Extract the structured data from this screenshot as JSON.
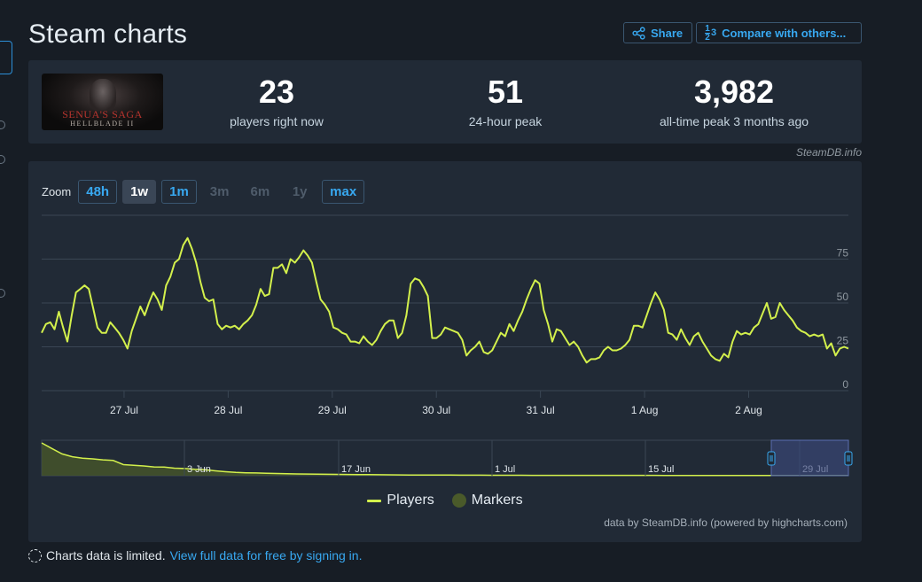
{
  "page": {
    "title": "Steam charts"
  },
  "header": {
    "share_label": "Share",
    "compare_label": "Compare with others...",
    "compare_icon_top": "1",
    "compare_icon_bottom": "2",
    "compare_icon_right": "3"
  },
  "game": {
    "thumb_title": "SENUA'S SAGA",
    "thumb_subtitle": "HELLBLADE II"
  },
  "stats": [
    {
      "value": "23",
      "label": "players right now"
    },
    {
      "value": "51",
      "label": "24-hour peak"
    },
    {
      "value": "3,982",
      "label": "all-time peak 3 months ago"
    }
  ],
  "credit_top": "SteamDB.info",
  "zoom": {
    "label": "Zoom",
    "options": [
      {
        "label": "48h",
        "state": "link"
      },
      {
        "label": "1w",
        "state": "active"
      },
      {
        "label": "1m",
        "state": "link"
      },
      {
        "label": "3m",
        "state": "disabled"
      },
      {
        "label": "6m",
        "state": "disabled"
      },
      {
        "label": "1y",
        "state": "disabled"
      },
      {
        "label": "max",
        "state": "link"
      }
    ]
  },
  "colors": {
    "series": "#d3f04c",
    "accent": "#38a8f0",
    "marker": "#4a5a2a",
    "navigator_window": "#3c4a7d"
  },
  "chart_data": {
    "type": "line",
    "title": "",
    "xlabel": "",
    "ylabel": "",
    "ylim": [
      0,
      100
    ],
    "yticks": [
      0,
      25,
      50,
      75
    ],
    "grid": true,
    "x_ticks": [
      "27 Jul",
      "28 Jul",
      "29 Jul",
      "30 Jul",
      "31 Jul",
      "1 Aug",
      "2 Aug"
    ],
    "x_start": "2024-07-26 05:00",
    "x_end": "2024-08-02 23:00",
    "sample_hours": 1,
    "series": [
      {
        "name": "Players",
        "values": [
          33,
          38,
          39,
          35,
          45,
          36,
          28,
          43,
          56,
          58,
          60,
          58,
          47,
          36,
          33,
          33,
          39,
          36,
          33,
          29,
          24,
          34,
          41,
          48,
          43,
          50,
          56,
          52,
          46,
          60,
          65,
          73,
          75,
          83,
          87,
          81,
          73,
          62,
          53,
          51,
          52,
          38,
          35,
          37,
          36,
          37,
          35,
          38,
          40,
          43,
          49,
          58,
          54,
          55,
          70,
          70,
          72,
          67,
          75,
          73,
          76,
          80,
          77,
          73,
          62,
          52,
          49,
          45,
          36,
          35,
          33,
          32,
          28,
          28,
          27,
          31,
          28,
          26,
          29,
          34,
          38,
          40,
          40,
          30,
          33,
          43,
          61,
          64,
          63,
          59,
          54,
          30,
          30,
          32,
          36,
          35,
          34,
          33,
          29,
          20,
          23,
          25,
          28,
          22,
          21,
          23,
          28,
          33,
          31,
          38,
          34,
          40,
          45,
          52,
          58,
          63,
          61,
          46,
          38,
          28,
          35,
          34,
          30,
          26,
          28,
          25,
          20,
          16,
          18,
          18,
          19,
          23,
          25,
          23,
          23,
          24,
          26,
          29,
          37,
          37,
          36,
          43,
          50,
          56,
          52,
          46,
          33,
          32,
          29,
          35,
          30,
          26,
          31,
          33,
          28,
          24,
          20,
          18,
          17,
          21,
          19,
          28,
          34,
          32,
          33,
          32,
          36,
          38,
          44,
          50,
          41,
          42,
          50,
          46,
          43,
          40,
          36,
          34,
          33,
          31,
          32,
          31,
          32,
          24,
          27,
          20,
          24,
          25,
          24
        ]
      }
    ],
    "navigator": {
      "x_ticks": [
        "3 Jun",
        "17 Jun",
        "1 Jul",
        "15 Jul",
        "29 Jul"
      ],
      "values": [
        3982,
        3300,
        2650,
        2300,
        2130,
        2050,
        1930,
        1850,
        1350,
        1260,
        1180,
        1070,
        1050,
        920,
        870,
        770,
        720,
        590,
        480,
        400,
        360,
        330,
        300,
        270,
        250,
        220,
        200,
        185,
        170,
        160,
        150,
        140,
        130,
        120,
        110,
        95,
        90,
        85,
        80,
        75,
        70,
        65,
        62,
        60,
        58,
        55,
        52,
        50,
        48,
        46,
        45,
        44,
        43,
        42,
        41,
        40,
        40,
        39,
        39,
        38,
        38,
        37,
        37,
        36,
        36,
        35,
        35,
        34,
        34,
        33,
        33,
        32,
        32,
        31,
        31,
        30,
        30,
        30,
        30,
        30
      ]
    }
  },
  "legend": {
    "series_label": "Players",
    "markers_label": "Markers"
  },
  "credit_bottom": "data by SteamDB.info (powered by highcharts.com)",
  "footer": {
    "notice": "Charts data is limited.",
    "link": "View full data for free by signing in."
  }
}
